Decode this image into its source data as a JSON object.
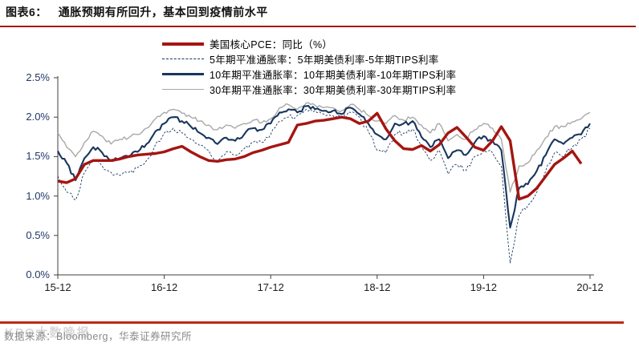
{
  "header": {
    "tag": "图表6：",
    "title": "通胀预期有所回升，基本回到疫情前水平"
  },
  "legend": [
    {
      "series": "core_pce",
      "label": "美国核心PCE：同比（%）"
    },
    {
      "series": "be5y",
      "label": "5年期平准通胀率：5年期美债利率-5年期TIPS利率"
    },
    {
      "series": "be10y",
      "label": "10年期平准通胀率：10年期美债利率-10年期TIPS利率"
    },
    {
      "series": "be30y",
      "label": "30年期平准通胀率：30年期美债利率-30年期TIPS利率"
    }
  ],
  "footer": {
    "source": "数据来源：Bloomberg，华泰证券研究所",
    "watermark": "KPO大数晚报"
  },
  "colors": {
    "core_red": "#a51511",
    "navy": "#17365d",
    "gray_line": "#a8a8a8",
    "rule_red_top": "#a6190b",
    "rule_red_bottom": "#bf2718",
    "axis_label_blue": "#1f3864",
    "axis_line": "#3f3f3f",
    "footer_gray": "#8a8a8a"
  },
  "chart_data": {
    "type": "line",
    "x_start": "2015-12",
    "x_end": "2020-12",
    "x_tick_labels": [
      "15-12",
      "16-12",
      "17-12",
      "18-12",
      "19-12",
      "20-12"
    ],
    "x_tick_month_index": [
      0,
      12,
      24,
      36,
      48,
      60
    ],
    "y_tick_labels": [
      "0.0%",
      "0.5%",
      "1.0%",
      "1.5%",
      "2.0%",
      "2.5%"
    ],
    "y_tick_values": [
      0,
      0.5,
      1.0,
      1.5,
      2.0,
      2.5
    ],
    "ylim": [
      0,
      2.5
    ],
    "grid": false,
    "legend_position": "top",
    "months": 61,
    "series": [
      {
        "id": "be30y",
        "name": "30年期平准通胀率：30年期美债利率-30年期TIPS利率",
        "values": [
          1.8,
          1.62,
          1.5,
          1.68,
          1.82,
          1.76,
          1.66,
          1.72,
          1.74,
          1.78,
          1.86,
          1.98,
          2.06,
          2.1,
          2.05,
          2.0,
          1.95,
          1.9,
          1.84,
          1.9,
          1.86,
          1.92,
          1.96,
          1.93,
          1.98,
          2.12,
          2.16,
          2.1,
          2.18,
          2.15,
          2.12,
          2.12,
          2.08,
          2.16,
          2.1,
          2.02,
          1.95,
          1.92,
          2.02,
          1.96,
          2.0,
          1.9,
          1.8,
          1.92,
          1.7,
          1.78,
          1.72,
          1.84,
          1.92,
          1.86,
          1.72,
          1.05,
          1.38,
          1.42,
          1.58,
          1.74,
          1.88,
          1.88,
          1.94,
          1.98,
          2.06
        ]
      },
      {
        "id": "be5y",
        "name": "5年期平准通胀率：5年期美债利率-5年期TIPS利率",
        "values": [
          1.25,
          1.05,
          0.95,
          1.3,
          1.45,
          1.38,
          1.3,
          1.26,
          1.3,
          1.36,
          1.45,
          1.65,
          1.8,
          1.86,
          1.8,
          1.72,
          1.64,
          1.58,
          1.45,
          1.56,
          1.52,
          1.6,
          1.68,
          1.68,
          1.78,
          1.95,
          2.0,
          2.02,
          2.1,
          2.08,
          2.04,
          2.02,
          2.0,
          2.06,
          2.0,
          1.82,
          1.58,
          1.55,
          1.78,
          1.8,
          1.85,
          1.62,
          1.45,
          1.58,
          1.28,
          1.4,
          1.32,
          1.5,
          1.58,
          1.55,
          1.38,
          0.15,
          0.75,
          0.88,
          1.05,
          1.32,
          1.55,
          1.5,
          1.62,
          1.72,
          1.86
        ]
      },
      {
        "id": "be10y",
        "name": "10年期平准通胀率：10年期美债利率-10年期TIPS利率",
        "values": [
          1.57,
          1.42,
          1.2,
          1.48,
          1.62,
          1.55,
          1.45,
          1.48,
          1.5,
          1.56,
          1.66,
          1.82,
          1.92,
          2.0,
          1.95,
          1.88,
          1.8,
          1.74,
          1.66,
          1.74,
          1.7,
          1.78,
          1.86,
          1.84,
          1.92,
          2.06,
          2.1,
          2.06,
          2.14,
          2.1,
          2.08,
          2.08,
          2.04,
          2.12,
          2.04,
          1.92,
          1.78,
          1.72,
          1.92,
          1.92,
          1.95,
          1.75,
          1.62,
          1.72,
          1.48,
          1.58,
          1.52,
          1.68,
          1.76,
          1.7,
          1.58,
          0.6,
          1.1,
          1.15,
          1.32,
          1.52,
          1.72,
          1.66,
          1.74,
          1.78,
          1.92
        ]
      },
      {
        "id": "core_pce",
        "name": "美国核心PCE：同比（%）",
        "values": [
          1.19,
          1.17,
          1.22,
          1.4,
          1.45,
          1.45,
          1.45,
          1.47,
          1.5,
          1.52,
          1.53,
          1.54,
          1.56,
          1.6,
          1.63,
          1.56,
          1.5,
          1.45,
          1.44,
          1.46,
          1.47,
          1.5,
          1.55,
          1.58,
          1.62,
          1.65,
          1.68,
          1.9,
          1.92,
          1.95,
          1.96,
          1.98,
          2.0,
          1.98,
          1.92,
          1.95,
          2.05,
          1.85,
          1.7,
          1.6,
          1.59,
          1.64,
          1.57,
          1.65,
          1.8,
          1.87,
          1.75,
          1.62,
          1.58,
          1.7,
          1.88,
          1.7,
          0.96,
          1.0,
          1.1,
          1.25,
          1.4,
          1.48,
          1.57,
          1.41,
          null
        ]
      }
    ]
  }
}
